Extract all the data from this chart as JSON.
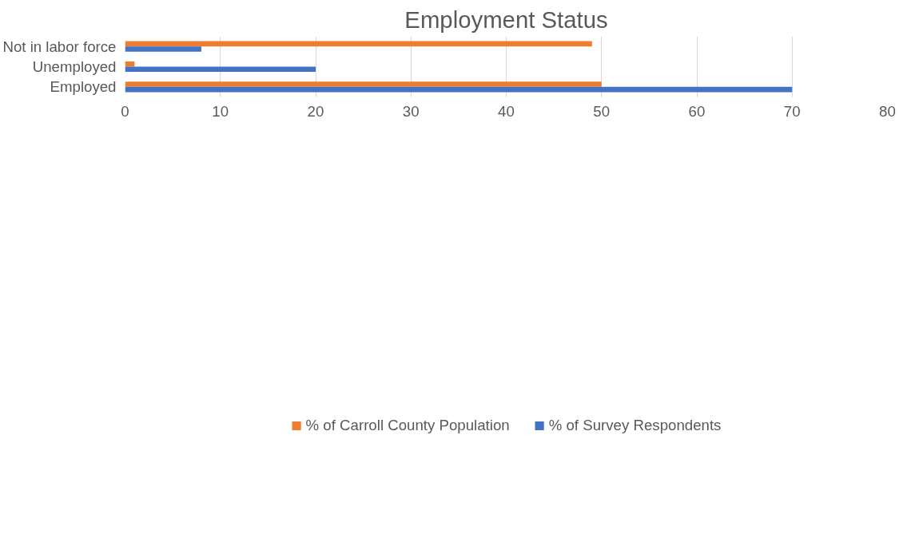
{
  "chart_data": {
    "type": "bar",
    "orientation": "horizontal",
    "title": "Employment Status",
    "categories": [
      "Not in labor force",
      "Unemployed",
      "Employed"
    ],
    "series": [
      {
        "name": "% of Carroll County Population",
        "color": "#ed7d31",
        "values": [
          49,
          1,
          50
        ]
      },
      {
        "name": "% of Survey Respondents",
        "color": "#4472c4",
        "values": [
          8,
          20,
          70
        ]
      }
    ],
    "xlim": [
      0,
      80
    ],
    "xticks": [
      0,
      10,
      20,
      30,
      40,
      50,
      60,
      70,
      80
    ],
    "grid": "x",
    "legend": "bottom"
  }
}
